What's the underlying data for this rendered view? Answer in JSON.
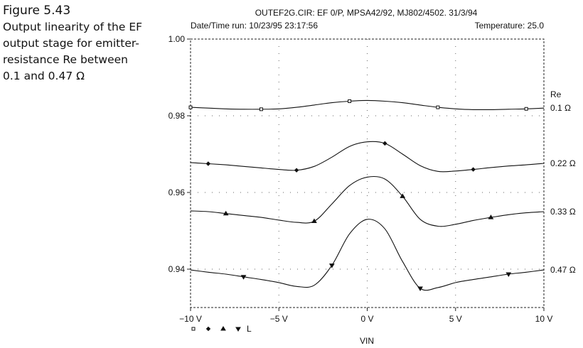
{
  "figure": {
    "number": "Figure 5.43",
    "caption": "Output linearity of the EF output stage for emitter-resistance Re between 0.1 and 0.47 Ω"
  },
  "header": {
    "title": "OUTEF2G.CIR: EF 0/P, MPSA42/92, MJ802/4502. 31/3/94",
    "run_info": "Date/Time run: 10/23/95 23:17:56",
    "temperature": "Temperature: 25.0"
  },
  "legend_row": {
    "label": "L"
  },
  "chart_data": {
    "type": "line",
    "xlabel": "VIN",
    "ylabel": "",
    "xlim": [
      -10,
      10
    ],
    "ylim": [
      0.93,
      1.0
    ],
    "x_ticks": [
      -10,
      -5,
      0,
      5,
      10
    ],
    "x_tick_labels": [
      "−10 V",
      "−5 V",
      "0 V",
      "5 V",
      "10 V"
    ],
    "y_ticks": [
      0.94,
      0.96,
      0.98,
      1.0
    ],
    "y_tick_labels": [
      "0.94",
      "0.96",
      "0.98",
      "1.00"
    ],
    "grid": "dotted",
    "legend_title": "Re",
    "x": [
      -10,
      -9,
      -8,
      -7,
      -6,
      -5,
      -4,
      -3,
      -2,
      -1,
      0,
      1,
      2,
      3,
      4,
      5,
      6,
      7,
      8,
      9,
      10
    ],
    "series": [
      {
        "name": "0.1 Ω",
        "marker": "square",
        "values": [
          0.9822,
          0.982,
          0.9818,
          0.9817,
          0.9817,
          0.9818,
          0.9822,
          0.9828,
          0.9834,
          0.9838,
          0.984,
          0.9838,
          0.9834,
          0.9828,
          0.9822,
          0.9818,
          0.9816,
          0.9816,
          0.9817,
          0.9818,
          0.982
        ]
      },
      {
        "name": "0.22 Ω",
        "marker": "diamond",
        "values": [
          0.9678,
          0.9675,
          0.9672,
          0.9668,
          0.9664,
          0.966,
          0.9658,
          0.9668,
          0.9692,
          0.972,
          0.9732,
          0.9728,
          0.97,
          0.967,
          0.9655,
          0.9656,
          0.966,
          0.9665,
          0.9669,
          0.9672,
          0.9676
        ]
      },
      {
        "name": "0.33 Ω",
        "marker": "triangle-up",
        "values": [
          0.9552,
          0.955,
          0.9545,
          0.954,
          0.9535,
          0.9528,
          0.9522,
          0.9525,
          0.957,
          0.9618,
          0.964,
          0.9635,
          0.959,
          0.953,
          0.9512,
          0.9517,
          0.9527,
          0.9535,
          0.9542,
          0.9547,
          0.955
        ]
      },
      {
        "name": "0.47 Ω",
        "marker": "triangle-down",
        "values": [
          0.9398,
          0.9392,
          0.9387,
          0.938,
          0.9373,
          0.9365,
          0.9355,
          0.9358,
          0.941,
          0.9492,
          0.953,
          0.9505,
          0.942,
          0.935,
          0.9352,
          0.9365,
          0.9373,
          0.938,
          0.9387,
          0.9392,
          0.9398
        ]
      }
    ]
  }
}
